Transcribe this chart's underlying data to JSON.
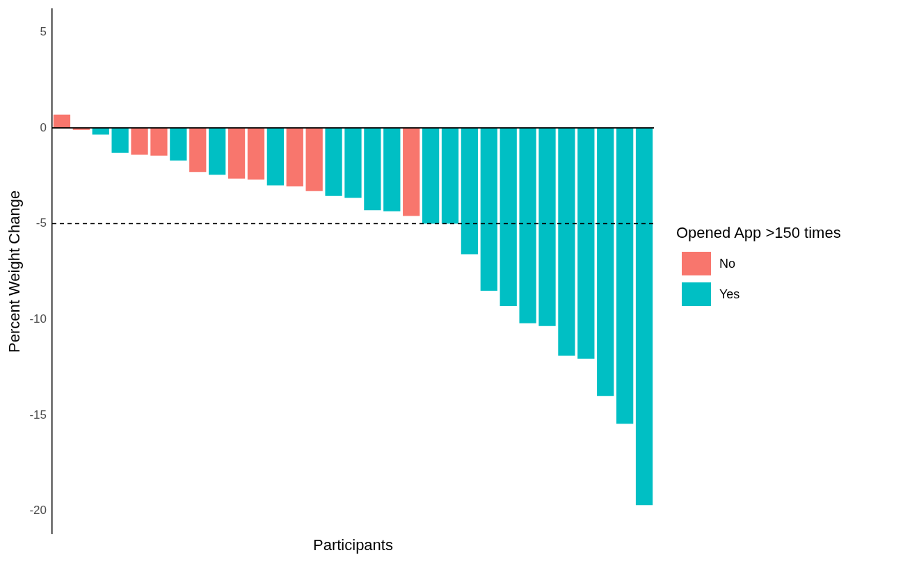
{
  "chart_data": {
    "type": "bar",
    "xlabel": "Participants",
    "ylabel": "Percent Weight Change",
    "legend_title": "Opened App >150 times",
    "categories": [
      null,
      null,
      null,
      null,
      null,
      null,
      null,
      null,
      null,
      null,
      null,
      null,
      null,
      null,
      null,
      null,
      null,
      null,
      null,
      null,
      null,
      null,
      null,
      null,
      null,
      null,
      null,
      null,
      null,
      null,
      null
    ],
    "stacked": true,
    "series": [
      {
        "name": "No",
        "color": "#f8766d",
        "values": [
          0.7,
          -0.1,
          null,
          null,
          -1.4,
          -1.45,
          null,
          -2.3,
          null,
          -2.65,
          -2.7,
          null,
          -3.05,
          -3.3,
          null,
          null,
          null,
          null,
          -4.6,
          null,
          null,
          null,
          null,
          null,
          null,
          null,
          null,
          null,
          null,
          null,
          null
        ]
      },
      {
        "name": "Yes",
        "color": "#00bfc4",
        "values": [
          null,
          null,
          -0.35,
          -1.3,
          null,
          null,
          -1.7,
          null,
          -2.45,
          null,
          null,
          -3.0,
          null,
          null,
          -3.55,
          -3.65,
          -4.3,
          -4.35,
          null,
          -5.0,
          -5.0,
          -6.6,
          -8.5,
          -9.3,
          -10.2,
          -10.35,
          -11.9,
          -12.05,
          -14.0,
          -15.45,
          -19.7
        ]
      }
    ],
    "ylim": [
      -21.2,
      6.2
    ],
    "yticks": [
      -20,
      -15,
      -10,
      -5,
      0,
      5
    ],
    "ref_lines": [
      {
        "axis": "y",
        "value": 0,
        "color": "#000000",
        "line_style": "solid"
      },
      {
        "axis": "y",
        "value": -5,
        "color": "#000000",
        "line_style": "dashed"
      }
    ],
    "tick_labels": "y",
    "grid": false,
    "legend": "right"
  }
}
